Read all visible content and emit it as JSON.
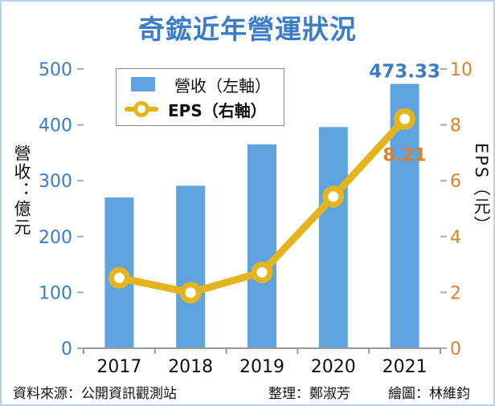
{
  "title": "奇鋐近年營運狀況",
  "chart_data": {
    "type": "bar+line",
    "title": "奇鋐近年營運狀況",
    "categories": [
      "2017",
      "2018",
      "2019",
      "2020",
      "2021"
    ],
    "series": [
      {
        "name": "營收（左軸）",
        "type": "bar",
        "axis": "left",
        "color": "#5fa3df",
        "values": [
          270,
          291,
          365,
          396,
          473.33
        ]
      },
      {
        "name": "EPS（右軸）",
        "type": "line",
        "axis": "right",
        "color": "#e3b41d",
        "values": [
          2.52,
          1.99,
          2.72,
          5.43,
          8.21
        ]
      }
    ],
    "data_labels": {
      "bar_last": "473.33",
      "line_last": "8.21"
    },
    "ylabel_left": "營收：億元",
    "ylabel_right": "EPS（元）",
    "ylim_left": [
      0,
      500
    ],
    "ylim_right": [
      0,
      10
    ],
    "yticks_left": [
      "0",
      "100",
      "200",
      "300",
      "400",
      "500"
    ],
    "yticks_right": [
      "0",
      "2",
      "4",
      "6",
      "8",
      "10"
    ],
    "left_tick_color": "#3a7cc7",
    "right_tick_color": "#d9822b",
    "grid": false,
    "legend_position": "top-left"
  },
  "footer": {
    "source": "資料來源：公開資訊觀測站",
    "editor": "整理：鄭淑芳",
    "artist": "繪圖：林維鈞"
  }
}
